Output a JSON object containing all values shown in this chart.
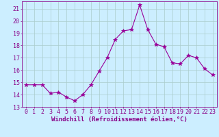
{
  "x": [
    0,
    1,
    2,
    3,
    4,
    5,
    6,
    7,
    8,
    9,
    10,
    11,
    12,
    13,
    14,
    15,
    16,
    17,
    18,
    19,
    20,
    21,
    22,
    23
  ],
  "y": [
    14.8,
    14.8,
    14.8,
    14.1,
    14.2,
    13.8,
    13.5,
    14.0,
    14.8,
    15.9,
    17.0,
    18.5,
    19.2,
    19.3,
    21.3,
    19.3,
    18.1,
    17.9,
    16.6,
    16.5,
    17.2,
    17.0,
    16.1,
    15.6
  ],
  "line_color": "#990099",
  "marker": "*",
  "marker_size": 4,
  "bg_color": "#cceeff",
  "grid_color": "#aacccc",
  "xlabel": "Windchill (Refroidissement éolien,°C)",
  "xlim": [
    -0.5,
    23.5
  ],
  "ylim": [
    13.0,
    21.6
  ],
  "yticks": [
    13,
    14,
    15,
    16,
    17,
    18,
    19,
    20,
    21
  ],
  "xtick_labels": [
    "0",
    "1",
    "2",
    "3",
    "4",
    "5",
    "6",
    "7",
    "8",
    "9",
    "10",
    "11",
    "12",
    "13",
    "14",
    "15",
    "16",
    "17",
    "18",
    "19",
    "20",
    "21",
    "22",
    "23"
  ],
  "tick_color": "#880088",
  "label_color": "#880088",
  "spine_color": "#880088",
  "font_size": 6.0,
  "xlabel_fontsize": 6.5
}
